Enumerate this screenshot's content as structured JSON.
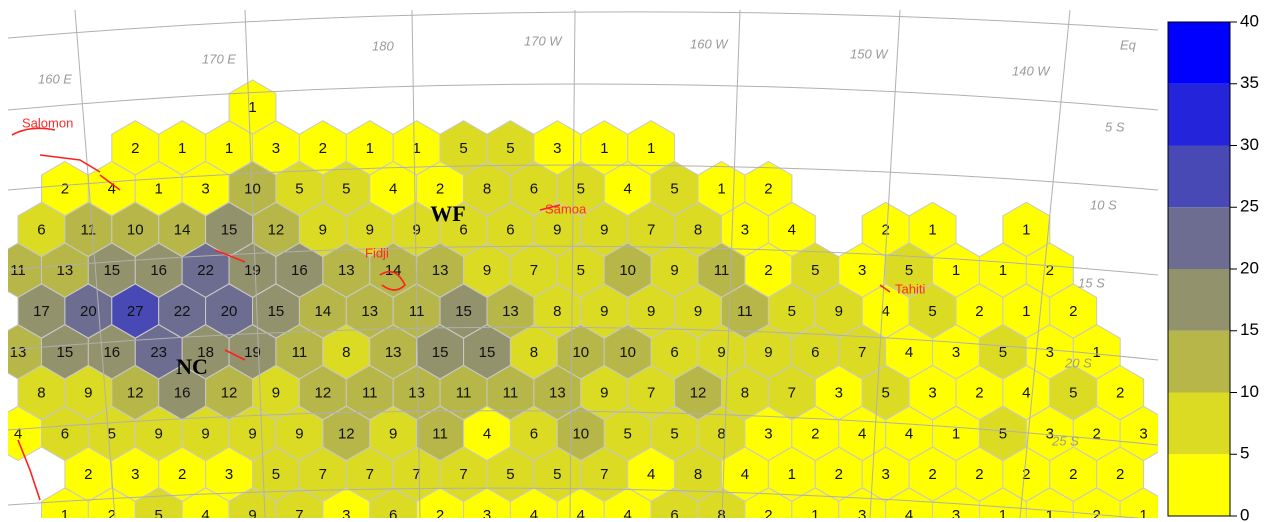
{
  "map_labels": {
    "lon": [
      "160 E",
      "170 E",
      "180",
      "170 W",
      "160 W",
      "150 W",
      "140 W"
    ],
    "lat": [
      "Eq",
      "5 S",
      "10 S",
      "15 S",
      "20 S",
      "25 S"
    ],
    "places": [
      "Salomon",
      "Fidji",
      "Samoa",
      "Tahiti"
    ],
    "regions": [
      "WF",
      "NC"
    ]
  },
  "hex_rows": [
    [
      null,
      null,
      null,
      null,
      null,
      1
    ],
    [
      null,
      null,
      2,
      1,
      1,
      3,
      2,
      1,
      1,
      5,
      5,
      3,
      1,
      1
    ],
    [
      null,
      2,
      4,
      1,
      3,
      10,
      5,
      5,
      4,
      2,
      8,
      6,
      5,
      4,
      5,
      1,
      2
    ],
    [
      6,
      11,
      10,
      14,
      15,
      12,
      9,
      9,
      9,
      6,
      6,
      9,
      9,
      7,
      8,
      3,
      4,
      null,
      2,
      1,
      null,
      1
    ],
    [
      11,
      13,
      15,
      16,
      22,
      19,
      16,
      13,
      14,
      13,
      9,
      7,
      5,
      10,
      9,
      11,
      2,
      5,
      3,
      5,
      1,
      1,
      2
    ],
    [
      17,
      20,
      27,
      22,
      20,
      15,
      14,
      13,
      11,
      15,
      13,
      8,
      9,
      9,
      9,
      11,
      5,
      9,
      4,
      5,
      2,
      1,
      2
    ],
    [
      13,
      15,
      16,
      23,
      18,
      19,
      11,
      8,
      13,
      15,
      15,
      8,
      10,
      10,
      6,
      9,
      9,
      6,
      7,
      4,
      3,
      5,
      3,
      1
    ],
    [
      8,
      9,
      12,
      16,
      12,
      9,
      12,
      11,
      13,
      11,
      11,
      13,
      9,
      7,
      12,
      8,
      7,
      3,
      5,
      3,
      2,
      4,
      5,
      2
    ],
    [
      4,
      6,
      5,
      9,
      9,
      9,
      9,
      12,
      9,
      11,
      4,
      6,
      10,
      5,
      5,
      8,
      3,
      2,
      4,
      4,
      1,
      5,
      3,
      2,
      3
    ],
    [
      null,
      2,
      3,
      2,
      3,
      5,
      7,
      7,
      7,
      7,
      5,
      5,
      7,
      4,
      8,
      4,
      1,
      2,
      3,
      2,
      2,
      2,
      2,
      2
    ],
    [
      null,
      1,
      2,
      5,
      4,
      9,
      7,
      3,
      6,
      2,
      3,
      4,
      4,
      4,
      6,
      8,
      2,
      1,
      3,
      4,
      3,
      1,
      1,
      2,
      1
    ]
  ],
  "colorbar": {
    "lim": [
      0,
      40
    ],
    "ticks": [
      0,
      5,
      10,
      15,
      20,
      25,
      30,
      35,
      40
    ],
    "colors": [
      "#ffff00",
      "#dbdb24",
      "#b6b649",
      "#92926d",
      "#6d6d92",
      "#4949b6",
      "#2424db",
      "#0000ff"
    ]
  }
}
